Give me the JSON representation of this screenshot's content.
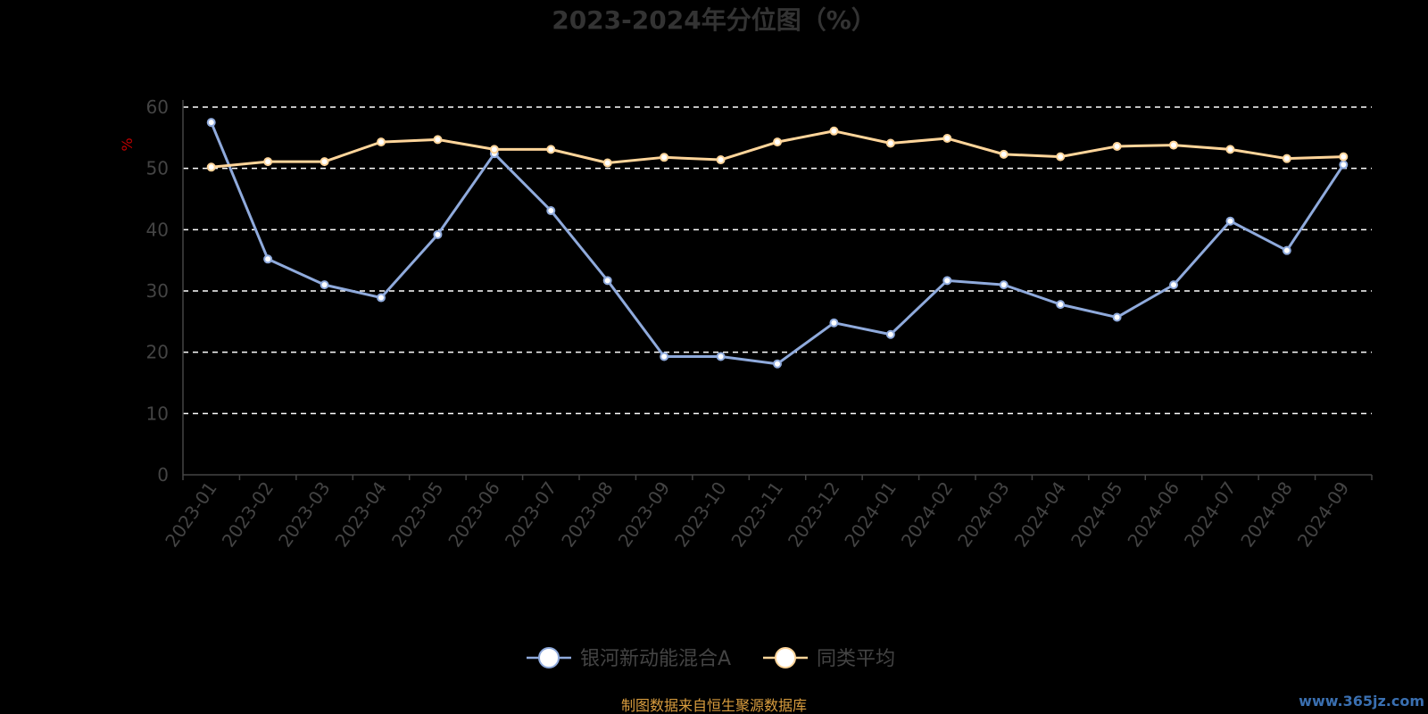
{
  "chart_data": {
    "type": "line",
    "title": "2023-2024年分位图（%）",
    "ylabel": "%",
    "ylim": [
      0,
      60
    ],
    "yticks": [
      0,
      10,
      20,
      30,
      40,
      50,
      60
    ],
    "grid": true,
    "legend_placement": "bottom-center",
    "categories": [
      "2023-01",
      "2023-02",
      "2023-03",
      "2023-04",
      "2023-05",
      "2023-06",
      "2023-07",
      "2023-08",
      "2023-09",
      "2023-10",
      "2023-11",
      "2023-12",
      "2024-01",
      "2024-02",
      "2024-03",
      "2024-04",
      "2024-05",
      "2024-06",
      "2024-07",
      "2024-08",
      "2024-09"
    ],
    "series": [
      {
        "name": "银河新动能混合A",
        "color": "#8faadc",
        "values": [
          57.5,
          35.2,
          31.0,
          28.9,
          39.2,
          52.4,
          43.1,
          31.7,
          19.3,
          19.3,
          18.1,
          24.8,
          22.9,
          31.7,
          31.0,
          27.8,
          25.7,
          31.0,
          41.4,
          36.6,
          50.6
        ]
      },
      {
        "name": "同类平均",
        "color": "#ffd59a",
        "values": [
          50.2,
          51.1,
          51.1,
          54.3,
          54.7,
          53.1,
          53.1,
          50.9,
          51.8,
          51.4,
          54.3,
          56.1,
          54.1,
          54.9,
          52.3,
          51.9,
          53.6,
          53.8,
          53.1,
          51.6,
          51.9
        ]
      }
    ]
  },
  "footer": {
    "source": "制图数据来自恒生聚源数据库",
    "watermark": "www.365jz.com"
  }
}
